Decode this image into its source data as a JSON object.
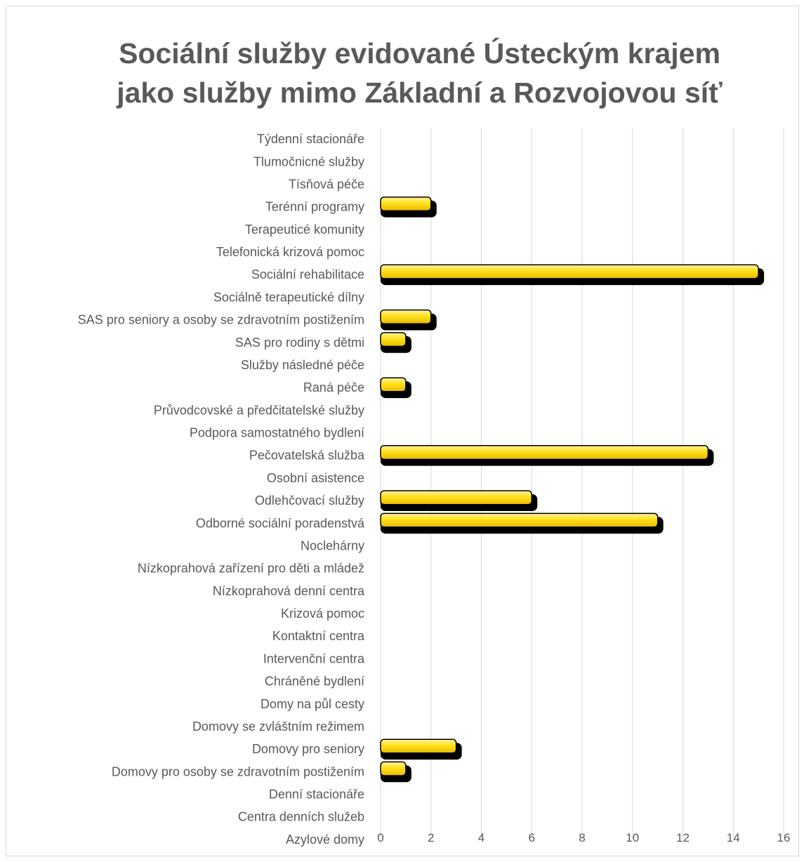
{
  "chart_data": {
    "type": "bar",
    "orientation": "horizontal",
    "title_lines": [
      "Sociální služby evidované Ústeckým krajem",
      "jako služby mimo Základní a Rozvojovou síť"
    ],
    "categories": [
      "Týdenní stacionáře",
      "Tlumočnicné služby",
      "Tísňová péče",
      "Terénní programy",
      "Terapeuticé komunity",
      "Telefonická krizová pomoc",
      "Sociální rehabilitace",
      "Sociálně terapeutické dílny",
      "SAS pro seniory a osoby se zdravotním postižením",
      "SAS pro rodiny s dětmi",
      "Služby následné péče",
      "Raná péče",
      "Průvodcovské a předčitatelské služby",
      "Podpora samostatného bydlení",
      "Pečovatelská služba",
      "Osobní asistence",
      "Odlehčovací služby",
      "Odborné sociální poradenstvá",
      "Noclehárny",
      "Nízkoprahová zařízení pro děti a mládež",
      "Nízkoprahová denní centra",
      "Krizová pomoc",
      "Kontaktní centra",
      "Intervenční centra",
      "Chráněné bydlení",
      "Domy na půl cesty",
      "Domovy se zvláštním režimem",
      "Domovy pro seniory",
      "Domovy pro osoby se zdravotním postižením",
      "Denní stacionáře",
      "Centra denních služeb",
      "Azylové domy"
    ],
    "values": [
      0,
      0,
      0,
      2,
      0,
      0,
      15,
      0,
      2,
      1,
      0,
      1,
      0,
      0,
      13,
      0,
      6,
      11,
      0,
      0,
      0,
      0,
      0,
      0,
      0,
      0,
      0,
      3,
      1,
      0,
      0,
      0
    ],
    "x_ticks": [
      "0",
      "2",
      "4",
      "6",
      "8",
      "10",
      "12",
      "14",
      "16"
    ],
    "xlim": [
      0,
      16
    ],
    "grid": true,
    "bar_color": "#FFD700",
    "bar_shadow_color": "#000000",
    "text_color": "#595959",
    "gridline_color": "#d9d9d9"
  }
}
